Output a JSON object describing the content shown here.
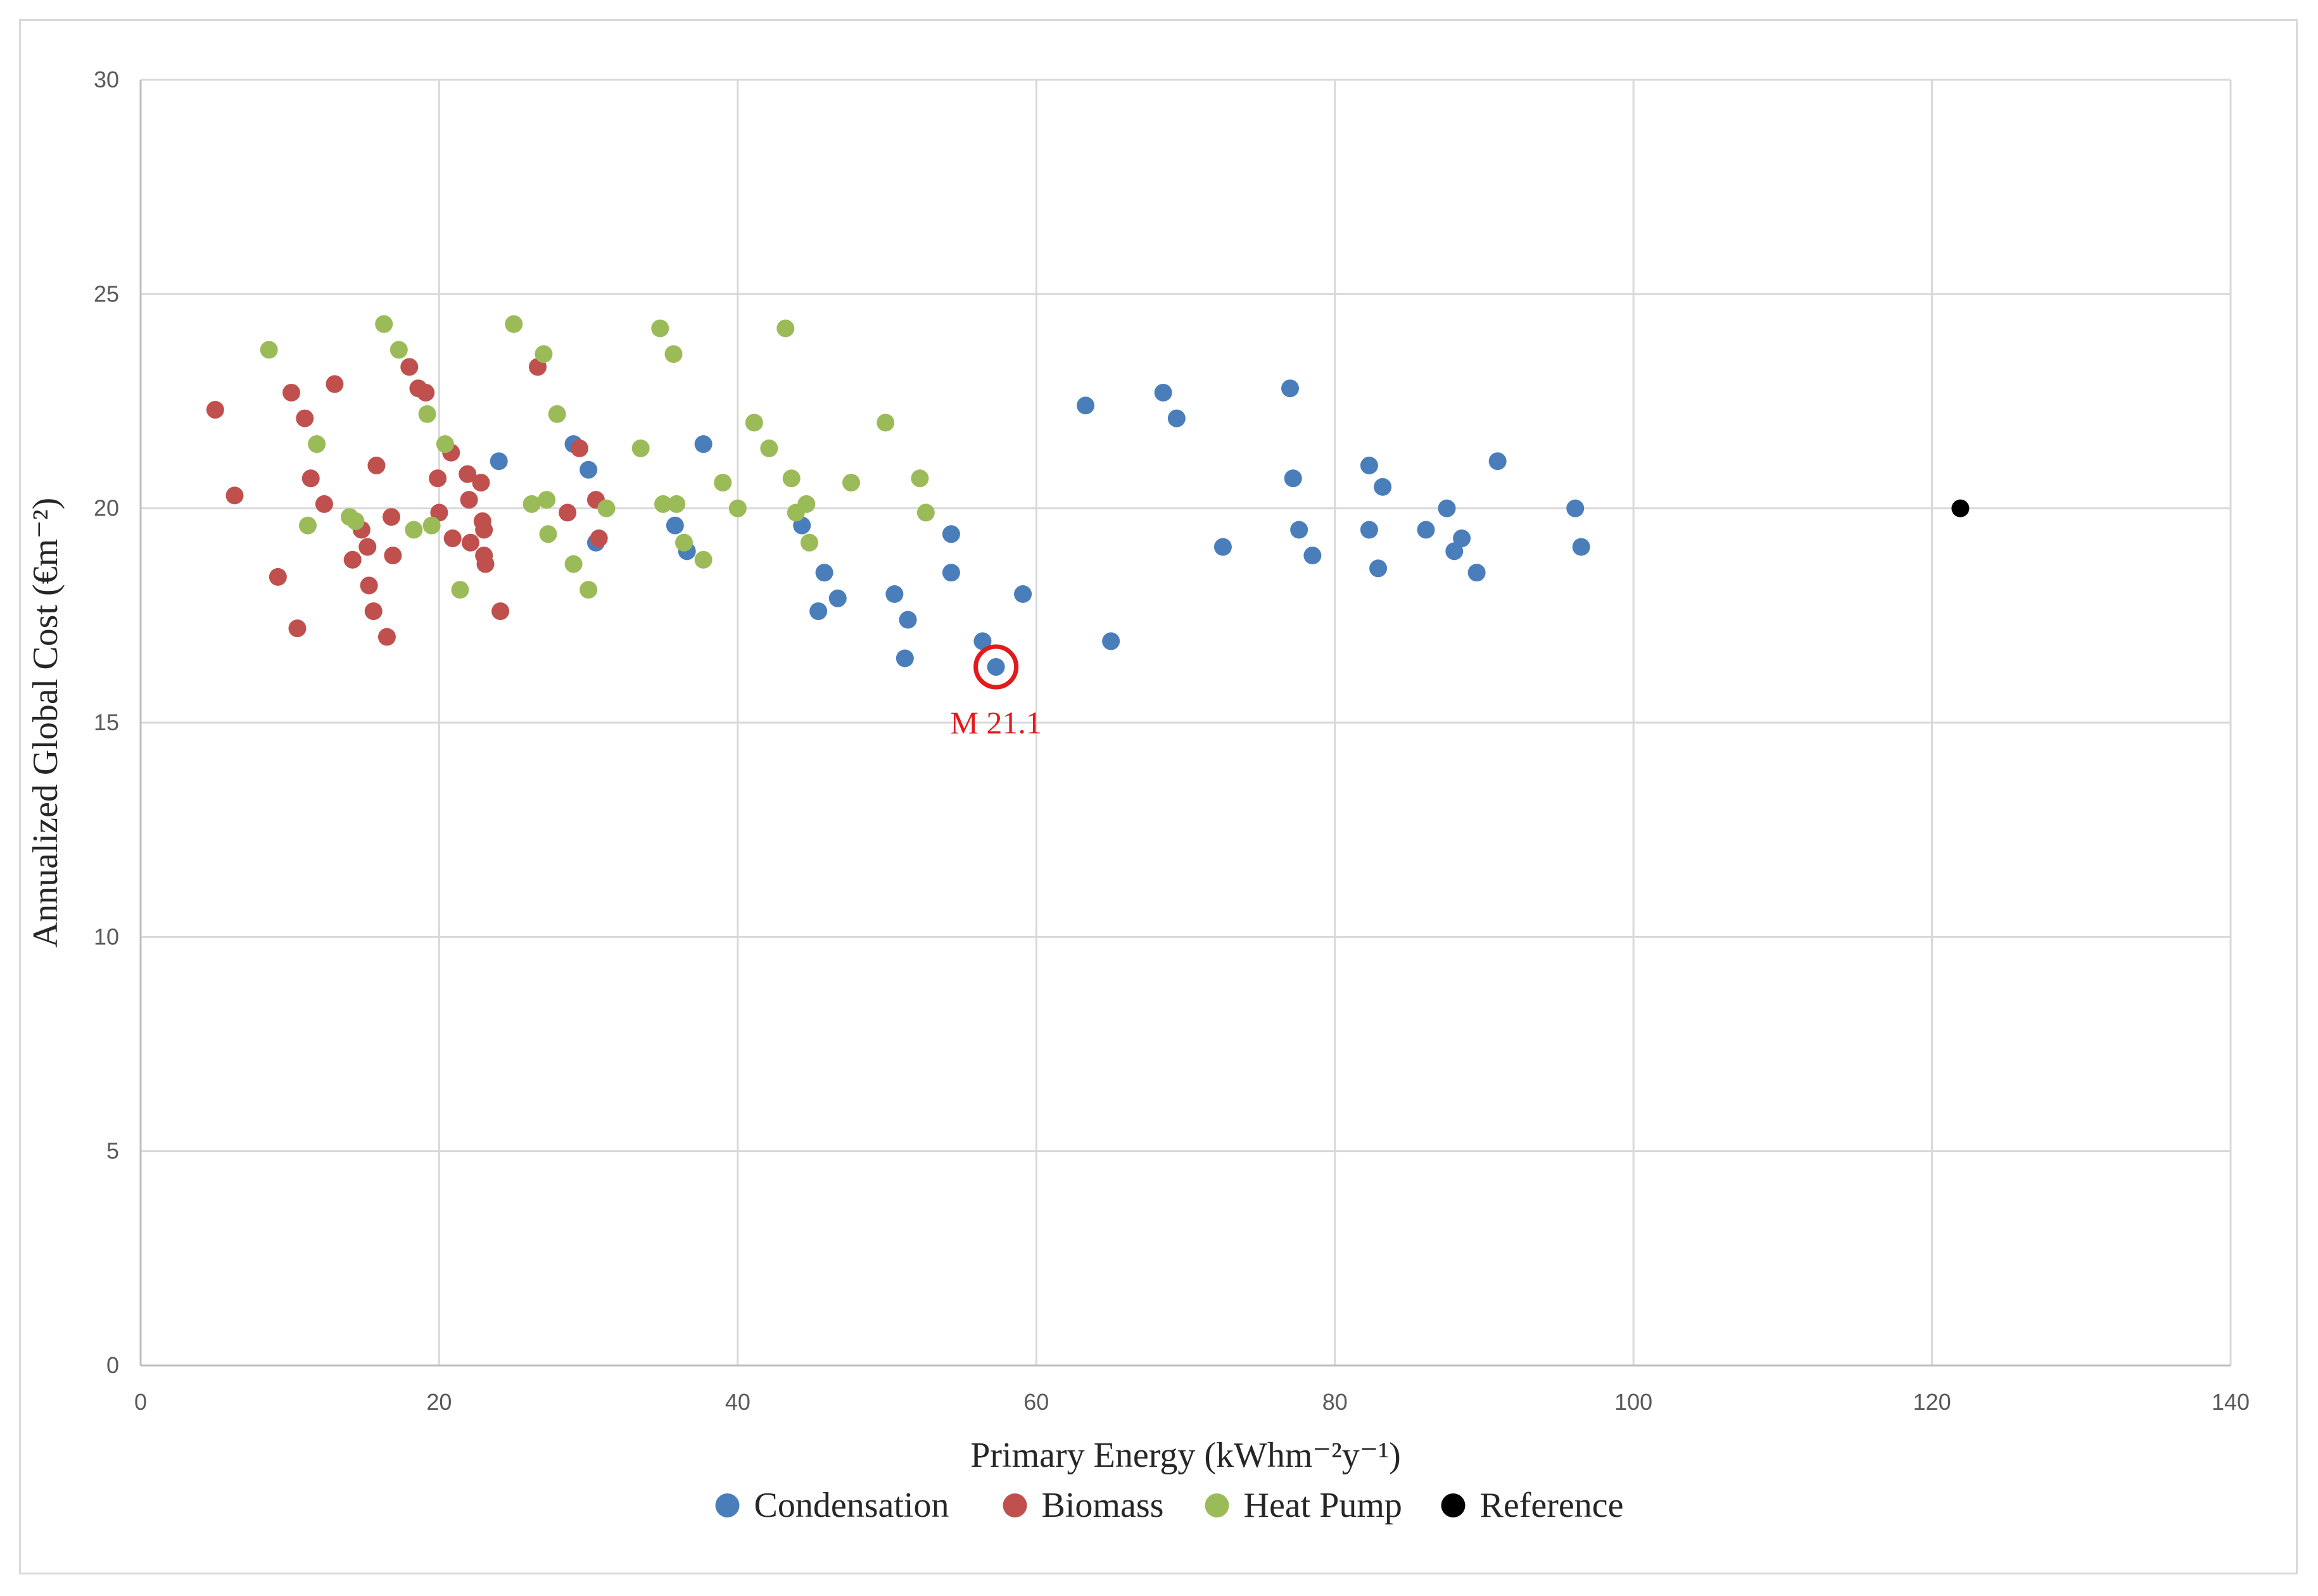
{
  "chart_data": {
    "type": "scatter",
    "title": "",
    "xlabel": "Primary Energy (kWhm⁻²y⁻¹)",
    "ylabel": "Annualized Global Cost (€m⁻²)",
    "xlim": [
      0,
      140
    ],
    "ylim": [
      0,
      30
    ],
    "xticks": [
      0,
      20,
      40,
      60,
      80,
      100,
      120,
      140
    ],
    "yticks": [
      0,
      5,
      10,
      15,
      20,
      25,
      30
    ],
    "grid": true,
    "legend_position": "bottom",
    "series": [
      {
        "name": "Condensation",
        "color": "#4a7ebb",
        "points": [
          [
            24,
            21.1
          ],
          [
            29,
            21.5
          ],
          [
            30,
            20.9
          ],
          [
            30.5,
            19.2
          ],
          [
            35.8,
            19.6
          ],
          [
            36.6,
            19.0
          ],
          [
            37.7,
            21.5
          ],
          [
            44.3,
            19.6
          ],
          [
            45.4,
            17.6
          ],
          [
            45.8,
            18.5
          ],
          [
            46.7,
            17.9
          ],
          [
            50.5,
            18.0
          ],
          [
            51.2,
            16.5
          ],
          [
            51.4,
            17.4
          ],
          [
            54.3,
            19.4
          ],
          [
            54.3,
            18.5
          ],
          [
            56.4,
            16.9
          ],
          [
            57.3,
            16.3
          ],
          [
            59.1,
            18.0
          ],
          [
            63.3,
            22.4
          ],
          [
            65.0,
            16.9
          ],
          [
            68.5,
            22.7
          ],
          [
            69.4,
            22.1
          ],
          [
            72.5,
            19.1
          ],
          [
            77.0,
            22.8
          ],
          [
            77.2,
            20.7
          ],
          [
            77.6,
            19.5
          ],
          [
            78.5,
            18.9
          ],
          [
            82.3,
            21.0
          ],
          [
            82.3,
            19.5
          ],
          [
            82.9,
            18.6
          ],
          [
            83.2,
            20.5
          ],
          [
            86.1,
            19.5
          ],
          [
            87.5,
            20.0
          ],
          [
            88.0,
            19.0
          ],
          [
            88.5,
            19.3
          ],
          [
            89.5,
            18.5
          ],
          [
            90.9,
            21.1
          ],
          [
            96.1,
            20.0
          ],
          [
            96.5,
            19.1
          ]
        ]
      },
      {
        "name": "Biomass",
        "color": "#c0504d",
        "points": [
          [
            5.0,
            22.3
          ],
          [
            6.3,
            20.3
          ],
          [
            9.2,
            18.4
          ],
          [
            10.1,
            22.7
          ],
          [
            10.5,
            17.2
          ],
          [
            11.0,
            22.1
          ],
          [
            11.4,
            20.7
          ],
          [
            12.3,
            20.1
          ],
          [
            13.0,
            22.9
          ],
          [
            14.2,
            18.8
          ],
          [
            14.8,
            19.5
          ],
          [
            15.2,
            19.1
          ],
          [
            15.3,
            18.2
          ],
          [
            15.6,
            17.6
          ],
          [
            15.8,
            21.0
          ],
          [
            16.5,
            17.0
          ],
          [
            16.8,
            19.8
          ],
          [
            16.9,
            18.9
          ],
          [
            18.0,
            23.3
          ],
          [
            18.6,
            22.8
          ],
          [
            19.1,
            22.7
          ],
          [
            19.9,
            20.7
          ],
          [
            20.0,
            19.9
          ],
          [
            20.8,
            21.3
          ],
          [
            20.9,
            19.3
          ],
          [
            21.9,
            20.8
          ],
          [
            22.0,
            20.2
          ],
          [
            22.1,
            19.2
          ],
          [
            22.8,
            20.6
          ],
          [
            22.9,
            19.7
          ],
          [
            23.0,
            19.5
          ],
          [
            23.0,
            18.9
          ],
          [
            23.1,
            18.7
          ],
          [
            24.1,
            17.6
          ],
          [
            26.6,
            23.3
          ],
          [
            28.6,
            19.9
          ],
          [
            29.4,
            21.4
          ],
          [
            30.5,
            20.2
          ],
          [
            30.7,
            19.3
          ]
        ]
      },
      {
        "name": "Heat Pump",
        "color": "#9bbb59",
        "points": [
          [
            8.6,
            23.7
          ],
          [
            11.2,
            19.6
          ],
          [
            11.8,
            21.5
          ],
          [
            14.0,
            19.8
          ],
          [
            14.4,
            19.7
          ],
          [
            16.3,
            24.3
          ],
          [
            17.3,
            23.7
          ],
          [
            18.3,
            19.5
          ],
          [
            19.2,
            22.2
          ],
          [
            19.5,
            19.6
          ],
          [
            20.4,
            21.5
          ],
          [
            21.4,
            18.1
          ],
          [
            25.0,
            24.3
          ],
          [
            26.2,
            20.1
          ],
          [
            27.0,
            23.6
          ],
          [
            27.2,
            20.2
          ],
          [
            27.3,
            19.4
          ],
          [
            27.9,
            22.2
          ],
          [
            29.0,
            18.7
          ],
          [
            30.0,
            18.1
          ],
          [
            31.2,
            20.0
          ],
          [
            33.5,
            21.4
          ],
          [
            34.8,
            24.2
          ],
          [
            35.0,
            20.1
          ],
          [
            35.7,
            23.6
          ],
          [
            35.9,
            20.1
          ],
          [
            36.4,
            19.2
          ],
          [
            37.7,
            18.8
          ],
          [
            39.0,
            20.6
          ],
          [
            40.0,
            20.0
          ],
          [
            41.1,
            22.0
          ],
          [
            42.1,
            21.4
          ],
          [
            43.2,
            24.2
          ],
          [
            43.6,
            20.7
          ],
          [
            43.9,
            19.9
          ],
          [
            44.6,
            20.1
          ],
          [
            44.8,
            19.2
          ],
          [
            47.6,
            20.6
          ],
          [
            49.9,
            22.0
          ],
          [
            52.2,
            20.7
          ],
          [
            52.6,
            19.9
          ]
        ]
      },
      {
        "name": "Reference",
        "color": "#000000",
        "points": [
          [
            121.9,
            20.0
          ]
        ]
      }
    ],
    "annotations": [
      {
        "label": "M 21.1",
        "x": 57.3,
        "y": 16.3,
        "color": "#e31a1c"
      }
    ]
  }
}
